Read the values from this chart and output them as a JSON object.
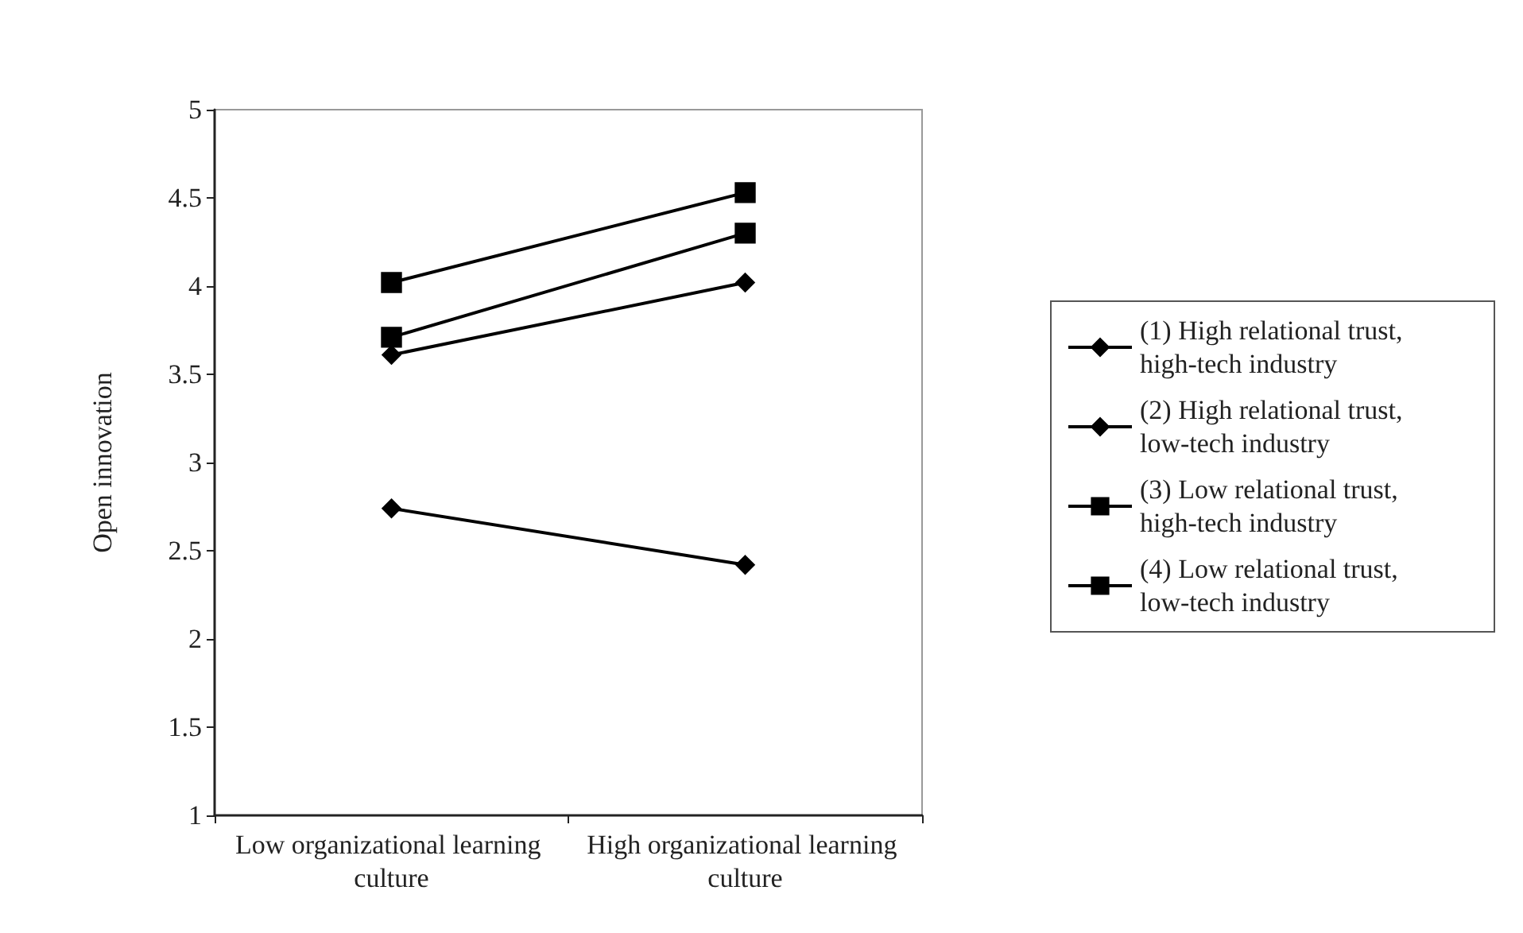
{
  "chart_data": {
    "type": "line",
    "ylabel": "Open innovation",
    "categories": [
      "Low organizational learning culture",
      "High organizational learning culture"
    ],
    "series": [
      {
        "name": "(1) High relational trust, high-tech industry",
        "color": "#000000",
        "marker": "diamond",
        "values": [
          2.74,
          2.42
        ]
      },
      {
        "name": "(2) High relational trust, low-tech industry",
        "color": "#000000",
        "marker": "diamond",
        "values": [
          3.61,
          4.02
        ]
      },
      {
        "name": "(3) Low relational trust, high-tech industry",
        "color": "#000000",
        "marker": "square",
        "values": [
          4.02,
          4.53
        ]
      },
      {
        "name": "(4) Low relational trust, low-tech industry",
        "color": "#000000",
        "marker": "square",
        "values": [
          3.71,
          4.3
        ]
      }
    ],
    "ylim": [
      1,
      5
    ],
    "yticks": [
      1,
      1.5,
      2,
      2.5,
      3,
      3.5,
      4,
      4.5,
      5
    ],
    "grid": false,
    "legend": "right",
    "line_style": "solid"
  }
}
